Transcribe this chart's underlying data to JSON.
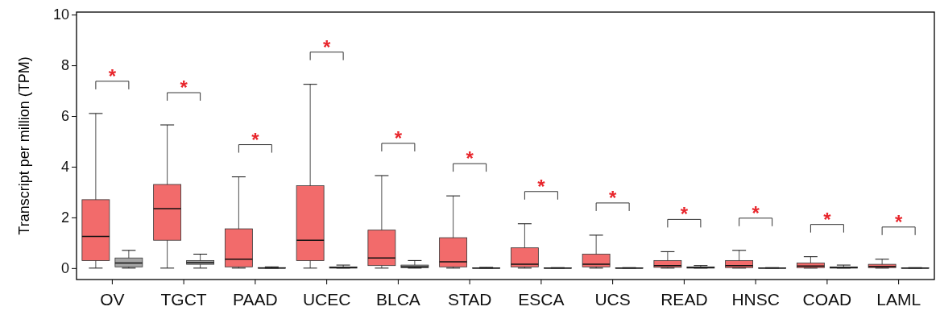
{
  "chart_data": {
    "type": "box",
    "ylabel": "Transcript per million (TPM)",
    "categories": [
      "OV",
      "TGCT",
      "PAAD",
      "UCEC",
      "BLCA",
      "STAD",
      "ESCA",
      "UCS",
      "READ",
      "HNSC",
      "COAD",
      "LAML"
    ],
    "ylim": [
      -0.45,
      10.1
    ],
    "yticks": [
      0,
      2,
      4,
      6,
      8,
      10
    ],
    "series": [
      {
        "color": "#f26b6b",
        "boxes": [
          {
            "low": 0,
            "q1": 0.3,
            "median": 1.25,
            "q3": 2.7,
            "high": 6.1
          },
          {
            "low": 0,
            "q1": 1.1,
            "median": 2.35,
            "q3": 3.3,
            "high": 5.65
          },
          {
            "low": 0,
            "q1": 0.05,
            "median": 0.35,
            "q3": 1.55,
            "high": 3.6
          },
          {
            "low": 0,
            "q1": 0.3,
            "median": 1.1,
            "q3": 3.25,
            "high": 7.25
          },
          {
            "low": 0,
            "q1": 0.1,
            "median": 0.4,
            "q3": 1.5,
            "high": 3.65
          },
          {
            "low": 0,
            "q1": 0.05,
            "median": 0.25,
            "q3": 1.2,
            "high": 2.85
          },
          {
            "low": 0,
            "q1": 0.05,
            "median": 0.15,
            "q3": 0.8,
            "high": 1.75
          },
          {
            "low": 0,
            "q1": 0.05,
            "median": 0.15,
            "q3": 0.55,
            "high": 1.3
          },
          {
            "low": 0,
            "q1": 0.03,
            "median": 0.1,
            "q3": 0.3,
            "high": 0.65
          },
          {
            "low": 0,
            "q1": 0.02,
            "median": 0.1,
            "q3": 0.3,
            "high": 0.7
          },
          {
            "low": 0,
            "q1": 0.02,
            "median": 0.08,
            "q3": 0.2,
            "high": 0.45
          },
          {
            "low": 0,
            "q1": 0.02,
            "median": 0.07,
            "q3": 0.15,
            "high": 0.35
          }
        ]
      },
      {
        "color": "#a6a6a6",
        "boxes": [
          {
            "low": 0,
            "q1": 0.05,
            "median": 0.2,
            "q3": 0.4,
            "high": 0.7
          },
          {
            "low": 0,
            "q1": 0.15,
            "median": 0.22,
            "q3": 0.3,
            "high": 0.55
          },
          {
            "low": 0,
            "q1": 0,
            "median": 0,
            "q3": 0.02,
            "high": 0.05
          },
          {
            "low": 0,
            "q1": 0,
            "median": 0.02,
            "q3": 0.05,
            "high": 0.12
          },
          {
            "low": 0,
            "q1": 0.02,
            "median": 0.05,
            "q3": 0.12,
            "high": 0.3
          },
          {
            "low": 0,
            "q1": 0,
            "median": 0,
            "q3": 0.01,
            "high": 0.03
          },
          {
            "low": 0,
            "q1": 0,
            "median": 0,
            "q3": 0.01,
            "high": 0.02
          },
          {
            "low": 0,
            "q1": 0,
            "median": 0,
            "q3": 0.01,
            "high": 0.02
          },
          {
            "low": 0,
            "q1": 0,
            "median": 0.02,
            "q3": 0.05,
            "high": 0.1
          },
          {
            "low": 0,
            "q1": 0,
            "median": 0,
            "q3": 0.01,
            "high": 0.02
          },
          {
            "low": 0,
            "q1": 0,
            "median": 0.02,
            "q3": 0.05,
            "high": 0.12
          },
          {
            "low": 0,
            "q1": 0,
            "median": 0,
            "q3": 0.01,
            "high": 0.02
          }
        ]
      }
    ],
    "annotations": [
      "*",
      "*",
      "*",
      "*",
      "*",
      "*",
      "*",
      "*",
      "*",
      "*",
      "*",
      "*"
    ]
  }
}
